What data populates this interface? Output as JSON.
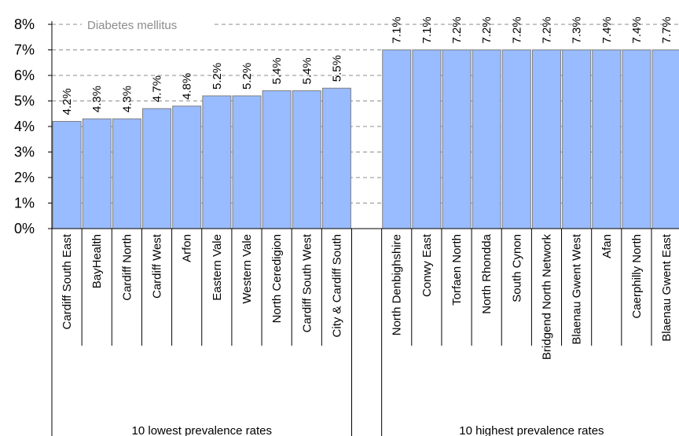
{
  "chart_data": {
    "type": "bar",
    "annotation": "Diabetes mellitus",
    "ylim": [
      0,
      0.08
    ],
    "y_ticks": [
      0,
      0.01,
      0.02,
      0.03,
      0.04,
      0.05,
      0.06,
      0.07,
      0.08
    ],
    "y_tick_labels": [
      "0%",
      "1%",
      "2%",
      "3%",
      "4%",
      "5%",
      "6%",
      "7%",
      "8%"
    ],
    "grid": "horizontal dashed",
    "bar_color": "#99bbff",
    "groups": [
      {
        "label": "10 lowest prevalence rates",
        "categories": [
          "Cardiff South East",
          "BayHealth",
          "Cardiff North",
          "Cardiff West",
          "Arfon",
          "Eastern Vale",
          "Western Vale",
          "North Ceredigion",
          "Cardiff South West",
          "City & Cardiff South"
        ],
        "values": [
          0.042,
          0.043,
          0.043,
          0.047,
          0.048,
          0.052,
          0.052,
          0.054,
          0.054,
          0.055
        ],
        "value_labels": [
          "4.2%",
          "4.3%",
          "4.3%",
          "4.7%",
          "4.8%",
          "5.2%",
          "5.2%",
          "5.4%",
          "5.4%",
          "5.5%"
        ]
      },
      {
        "label": "10 highest prevalence rates",
        "categories": [
          "North Denbighshire",
          "Conwy East",
          "Torfaen North",
          "North Rhondda",
          "South Cynon",
          "Bridgend North Network",
          "Blaenau Gwent West",
          "Afan",
          "Caerphilly North",
          "Blaenau Gwent East"
        ],
        "values": [
          0.071,
          0.071,
          0.072,
          0.072,
          0.072,
          0.072,
          0.073,
          0.074,
          0.074,
          0.077
        ],
        "value_labels": [
          "7.1%",
          "7.1%",
          "7.2%",
          "7.2%",
          "7.2%",
          "7.2%",
          "7.3%",
          "7.4%",
          "7.4%",
          "7.7%"
        ]
      }
    ]
  }
}
